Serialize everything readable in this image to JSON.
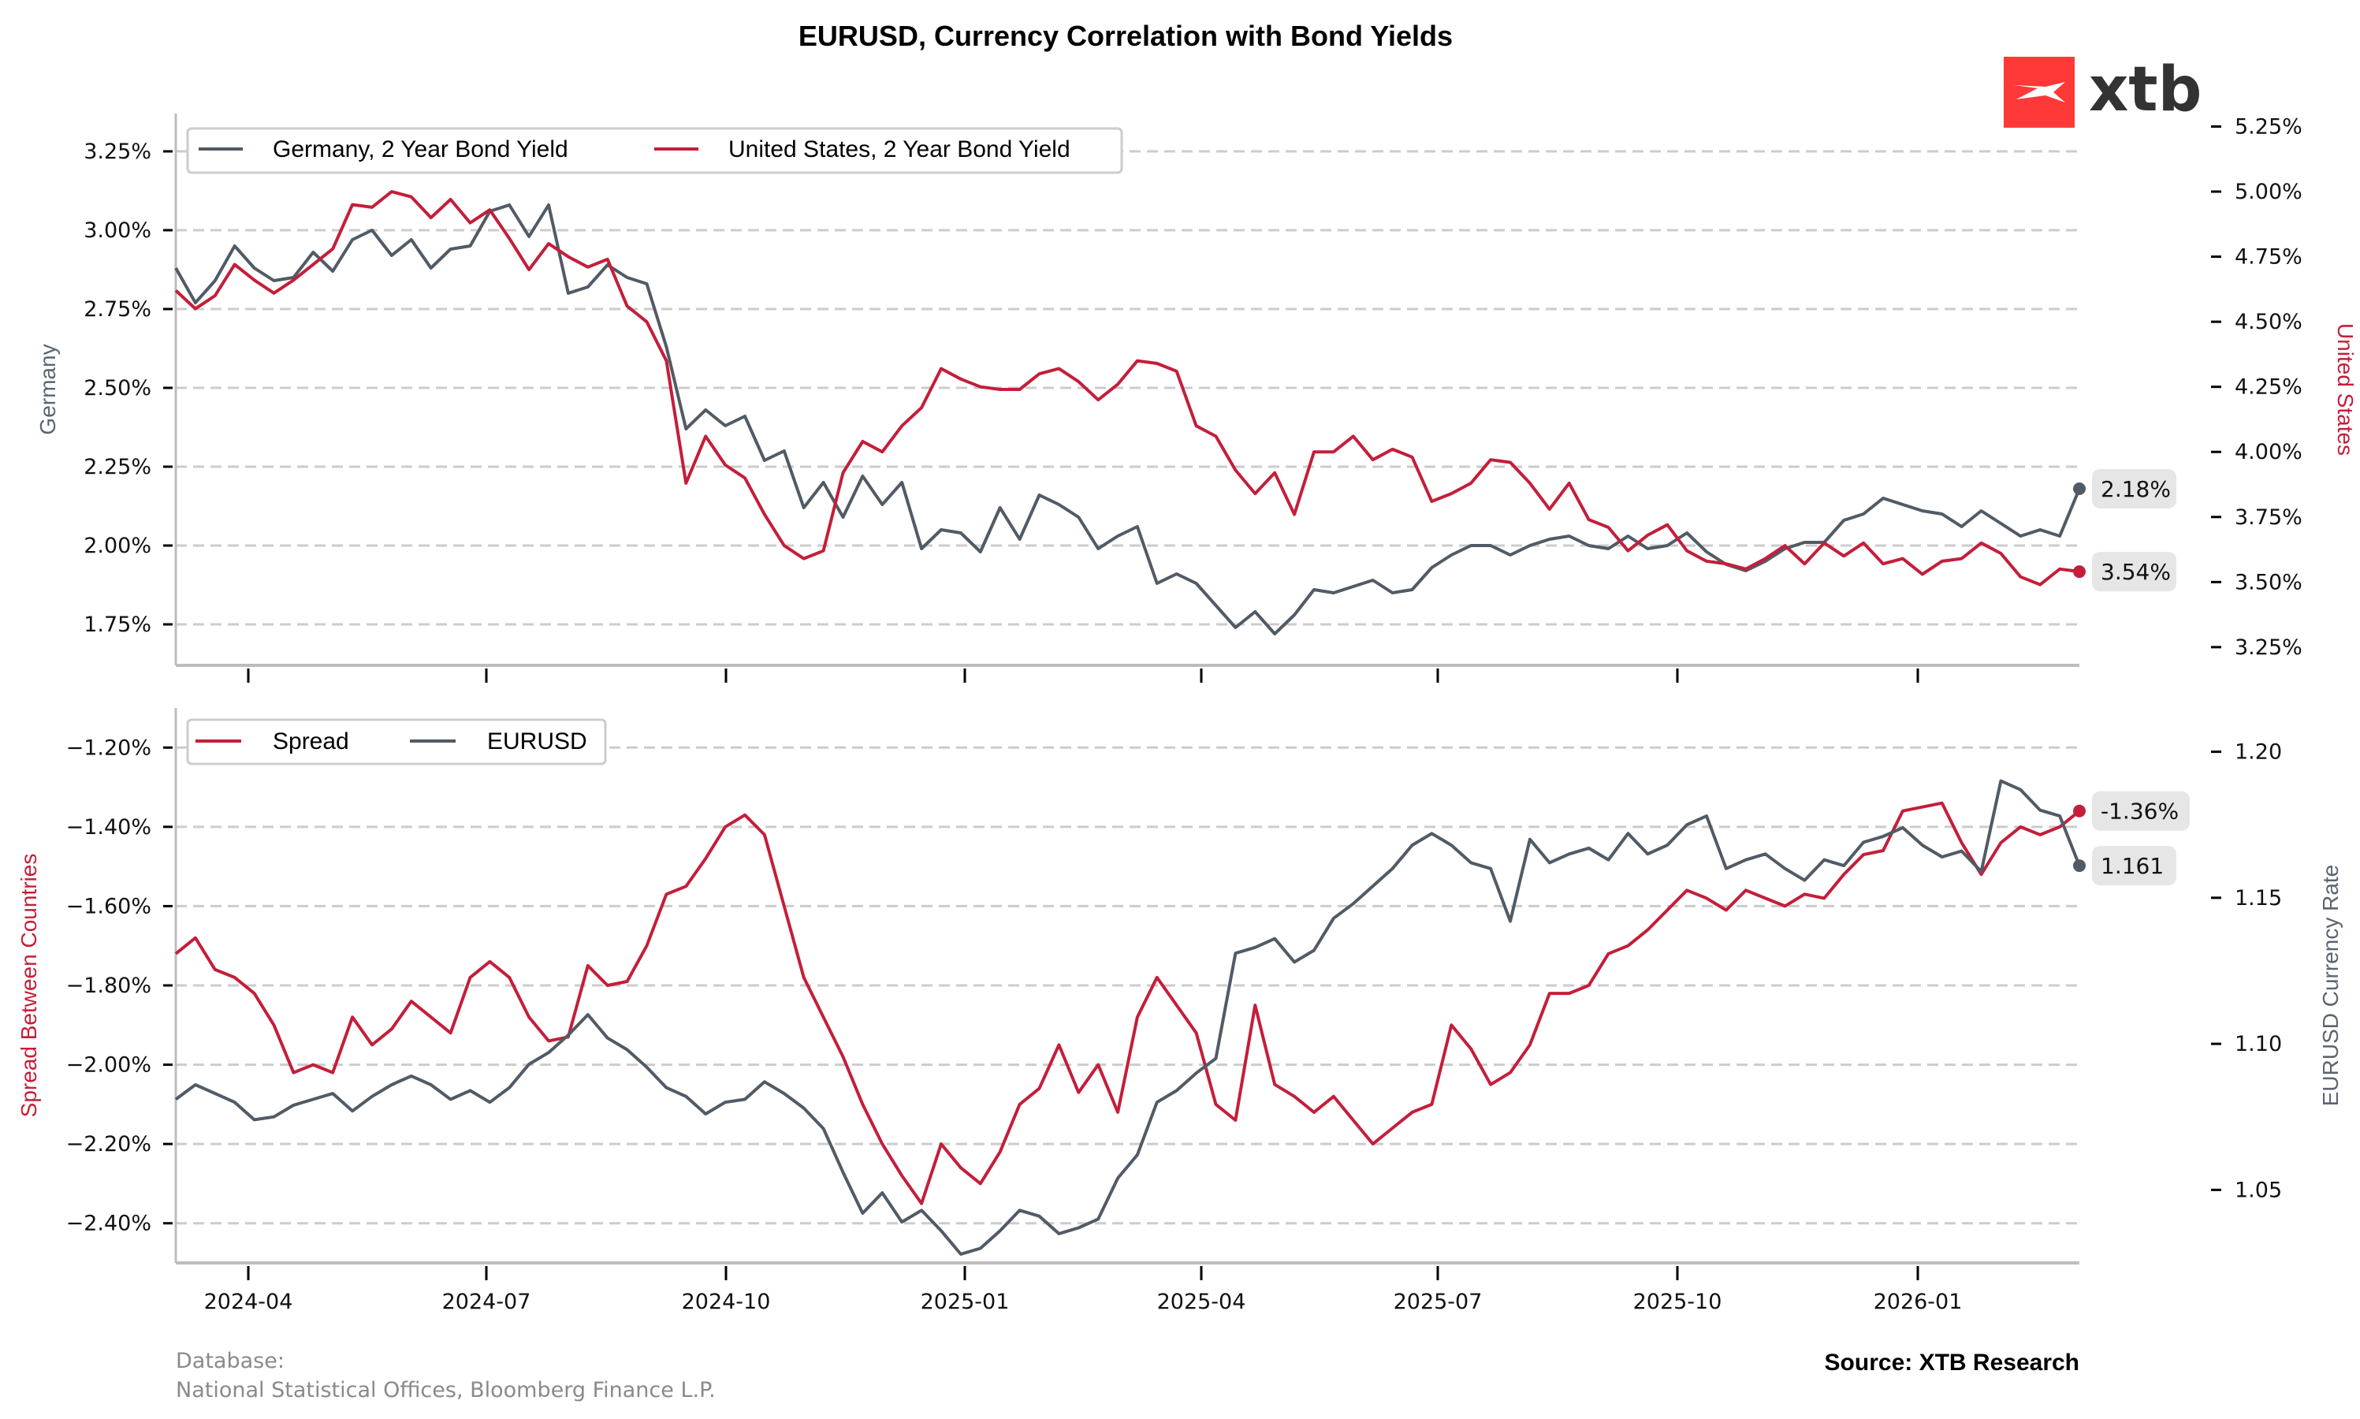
{
  "chart_data": [
    {
      "type": "line",
      "panel": "top",
      "title": "EURUSD, Currency Correlation with Bond Yields",
      "ylabel_left": "Germany",
      "ylabel_right": "United States",
      "ylim_left": [
        1.62,
        3.37
      ],
      "ylim_right": [
        3.18,
        5.3
      ],
      "yticks_left": [
        "3.25%",
        "3.00%",
        "2.75%",
        "2.50%",
        "2.25%",
        "2.00%",
        "1.75%"
      ],
      "yticks_left_values": [
        3.25,
        3.0,
        2.75,
        2.5,
        2.25,
        2.0,
        1.75
      ],
      "yticks_right": [
        "5.25%",
        "5.00%",
        "4.75%",
        "4.50%",
        "4.25%",
        "4.00%",
        "3.75%",
        "3.50%",
        "3.25%"
      ],
      "yticks_right_values": [
        5.25,
        5.0,
        4.75,
        4.5,
        4.25,
        4.0,
        3.75,
        3.5,
        3.25
      ],
      "grid": "horizontal-dashed",
      "legend_position": "top-left",
      "series": [
        {
          "name": "Germany, 2 Year Bond Yield",
          "axis": "left",
          "color": "#505b65",
          "last_label": "2.18%",
          "values": [
            2.88,
            2.77,
            2.84,
            2.95,
            2.88,
            2.84,
            2.85,
            2.93,
            2.87,
            2.97,
            3.0,
            2.92,
            2.97,
            2.88,
            2.94,
            2.95,
            3.06,
            3.08,
            2.98,
            3.08,
            2.8,
            2.82,
            2.89,
            2.85,
            2.83,
            2.63,
            2.37,
            2.43,
            2.38,
            2.41,
            2.27,
            2.3,
            2.12,
            2.2,
            2.09,
            2.22,
            2.13,
            2.2,
            1.99,
            2.05,
            2.04,
            1.98,
            2.12,
            2.02,
            2.16,
            2.13,
            2.09,
            1.99,
            2.03,
            2.06,
            1.88,
            1.91,
            1.88,
            1.81,
            1.74,
            1.79,
            1.72,
            1.78,
            1.86,
            1.85,
            1.87,
            1.89,
            1.85,
            1.86,
            1.93,
            1.97,
            2.0,
            2.0,
            1.97,
            2.0,
            2.02,
            2.03,
            2.0,
            1.99,
            2.03,
            1.99,
            2.0,
            2.04,
            1.98,
            1.94,
            1.92,
            1.95,
            1.99,
            2.01,
            2.01,
            2.08,
            2.1,
            2.15,
            2.13,
            2.11,
            2.1,
            2.06,
            2.11,
            2.07,
            2.03,
            2.05,
            2.03,
            2.18
          ]
        },
        {
          "name": "United States, 2 Year Bond Yield",
          "axis": "right",
          "color": "#c41e3a",
          "last_label": "3.54%",
          "values": [
            4.62,
            4.55,
            4.6,
            4.72,
            4.66,
            4.61,
            4.66,
            4.72,
            4.78,
            4.95,
            4.94,
            5.0,
            4.98,
            4.9,
            4.97,
            4.88,
            4.93,
            4.82,
            4.7,
            4.8,
            4.75,
            4.71,
            4.74,
            4.56,
            4.5,
            4.35,
            3.88,
            4.06,
            3.95,
            3.9,
            3.76,
            3.64,
            3.59,
            3.62,
            3.92,
            4.04,
            4.0,
            4.1,
            4.17,
            4.32,
            4.28,
            4.25,
            4.24,
            4.24,
            4.3,
            4.32,
            4.27,
            4.2,
            4.26,
            4.35,
            4.34,
            4.31,
            4.1,
            4.06,
            3.93,
            3.84,
            3.92,
            3.76,
            4.0,
            4.0,
            4.06,
            3.97,
            4.01,
            3.98,
            3.81,
            3.84,
            3.88,
            3.97,
            3.96,
            3.88,
            3.78,
            3.88,
            3.74,
            3.71,
            3.62,
            3.68,
            3.72,
            3.62,
            3.58,
            3.57,
            3.55,
            3.59,
            3.64,
            3.57,
            3.65,
            3.6,
            3.65,
            3.57,
            3.59,
            3.53,
            3.58,
            3.59,
            3.65,
            3.61,
            3.52,
            3.49,
            3.55,
            3.54
          ]
        }
      ]
    },
    {
      "type": "line",
      "panel": "bottom",
      "ylabel_left": "Spread Between Countries",
      "ylabel_right": "EURUSD Currency Rate",
      "ylim_left": [
        -2.5,
        -1.1
      ],
      "ylim_right": [
        1.025,
        1.215
      ],
      "yticks_left": [
        "−1.20%",
        "−1.40%",
        "−1.60%",
        "−1.80%",
        "−2.00%",
        "−2.20%",
        "−2.40%"
      ],
      "yticks_left_values": [
        -1.2,
        -1.4,
        -1.6,
        -1.8,
        -2.0,
        -2.2,
        -2.4
      ],
      "yticks_right": [
        "1.20",
        "1.15",
        "1.10",
        "1.05"
      ],
      "yticks_right_values": [
        1.2,
        1.15,
        1.1,
        1.05
      ],
      "grid": "horizontal-dashed",
      "legend_position": "top-left",
      "series": [
        {
          "name": "Spread",
          "axis": "left",
          "color": "#c41e3a",
          "last_label": "-1.36%",
          "values": [
            -1.72,
            -1.68,
            -1.76,
            -1.78,
            -1.82,
            -1.9,
            -2.02,
            -2.0,
            -2.02,
            -1.88,
            -1.95,
            -1.91,
            -1.84,
            -1.88,
            -1.92,
            -1.78,
            -1.74,
            -1.78,
            -1.88,
            -1.94,
            -1.93,
            -1.75,
            -1.8,
            -1.79,
            -1.7,
            -1.57,
            -1.55,
            -1.48,
            -1.4,
            -1.37,
            -1.42,
            -1.6,
            -1.78,
            -1.88,
            -1.98,
            -2.1,
            -2.2,
            -2.28,
            -2.35,
            -2.2,
            -2.26,
            -2.3,
            -2.22,
            -2.1,
            -2.06,
            -1.95,
            -2.07,
            -2.0,
            -2.12,
            -1.88,
            -1.78,
            -1.85,
            -1.92,
            -2.1,
            -2.14,
            -1.85,
            -2.05,
            -2.08,
            -2.12,
            -2.08,
            -2.14,
            -2.2,
            -2.16,
            -2.12,
            -2.1,
            -1.9,
            -1.96,
            -2.05,
            -2.02,
            -1.95,
            -1.82,
            -1.82,
            -1.8,
            -1.72,
            -1.7,
            -1.66,
            -1.61,
            -1.56,
            -1.58,
            -1.61,
            -1.56,
            -1.58,
            -1.6,
            -1.57,
            -1.58,
            -1.52,
            -1.47,
            -1.46,
            -1.36,
            -1.35,
            -1.34,
            -1.44,
            -1.52,
            -1.44,
            -1.4,
            -1.42,
            -1.4,
            -1.36
          ]
        },
        {
          "name": "EURUSD",
          "axis": "right",
          "color": "#505b65",
          "last_label": "1.161",
          "values": [
            1.081,
            1.086,
            1.083,
            1.08,
            1.074,
            1.075,
            1.079,
            1.081,
            1.083,
            1.077,
            1.082,
            1.086,
            1.089,
            1.086,
            1.081,
            1.084,
            1.08,
            1.085,
            1.093,
            1.097,
            1.103,
            1.11,
            1.102,
            1.098,
            1.092,
            1.085,
            1.082,
            1.076,
            1.08,
            1.081,
            1.087,
            1.083,
            1.078,
            1.071,
            1.056,
            1.042,
            1.049,
            1.039,
            1.043,
            1.036,
            1.028,
            1.03,
            1.036,
            1.043,
            1.041,
            1.035,
            1.037,
            1.04,
            1.054,
            1.062,
            1.08,
            1.084,
            1.09,
            1.095,
            1.131,
            1.133,
            1.136,
            1.128,
            1.132,
            1.143,
            1.148,
            1.154,
            1.16,
            1.168,
            1.172,
            1.168,
            1.162,
            1.16,
            1.142,
            1.17,
            1.162,
            1.165,
            1.167,
            1.163,
            1.172,
            1.165,
            1.168,
            1.175,
            1.178,
            1.16,
            1.163,
            1.165,
            1.16,
            1.156,
            1.163,
            1.161,
            1.169,
            1.171,
            1.174,
            1.168,
            1.164,
            1.166,
            1.159,
            1.19,
            1.187,
            1.18,
            1.178,
            1.161
          ]
        }
      ]
    }
  ],
  "xaxis": {
    "ticks": [
      "2024-04",
      "2024-07",
      "2024-10",
      "2025-01",
      "2025-04",
      "2025-07",
      "2025-10",
      "2026-01"
    ],
    "start": "2024-03",
    "end": "2026-02"
  },
  "footer": {
    "database_label": "Database:",
    "database_sources": "National Statistical Offices, Bloomberg Finance L.P.",
    "source": "Source: XTB Research"
  },
  "logo": {
    "text": "xtb",
    "color": "#ff3838"
  }
}
